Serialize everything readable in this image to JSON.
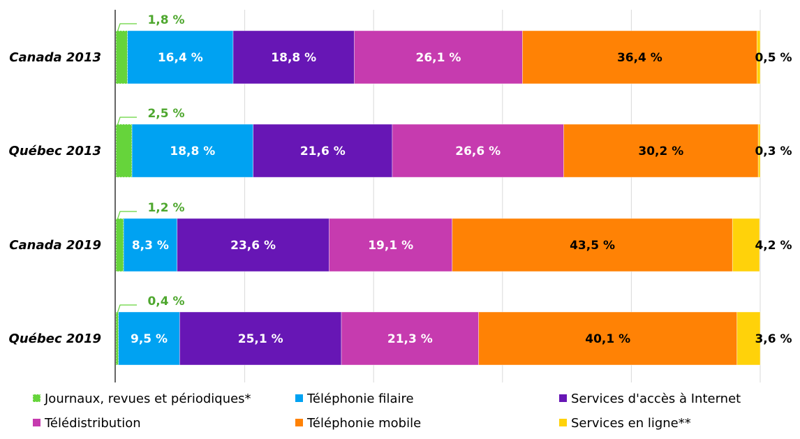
{
  "chart_data": {
    "type": "bar",
    "orientation": "horizontal",
    "stacked": true,
    "categories": [
      "Canada 2013",
      "Québec 2013",
      "Canada 2019",
      "Québec 2019"
    ],
    "series": [
      {
        "name": "Journaux, revues et périodiques*",
        "color": "#66D43B",
        "values": [
          1.8,
          2.5,
          1.2,
          0.4
        ],
        "value_labels": [
          "1,8 %",
          "2,5 %",
          "1,2 %",
          "0,4 %"
        ],
        "label_color": "#4EA72E"
      },
      {
        "name": "Téléphonie filaire",
        "color": "#00A2F2",
        "values": [
          16.4,
          18.8,
          8.3,
          9.5
        ],
        "value_labels": [
          "16,4 %",
          "18,8 %",
          "8,3 %",
          "9,5 %"
        ],
        "label_color": "#FFFFFF"
      },
      {
        "name": "Services d'accès à Internet",
        "color": "#6716B5",
        "values": [
          18.8,
          21.6,
          23.6,
          25.1
        ],
        "value_labels": [
          "18,8 %",
          "21,6 %",
          "23,6 %",
          "25,1 %"
        ],
        "label_color": "#FFFFFF"
      },
      {
        "name": "Télédistribution",
        "color": "#C63BAF",
        "values": [
          26.1,
          26.6,
          19.1,
          21.3
        ],
        "value_labels": [
          "26,1 %",
          "26,6 %",
          "19,1 %",
          "21,3 %"
        ],
        "label_color": "#FFFFFF"
      },
      {
        "name": "Téléphonie mobile",
        "color": "#FF8205",
        "values": [
          36.4,
          30.2,
          43.5,
          40.1
        ],
        "value_labels": [
          "36,4 %",
          "30,2 %",
          "43,5 %",
          "40,1 %"
        ],
        "label_color": "#000000"
      },
      {
        "name": "Services en ligne**",
        "color": "#FFD20A",
        "values": [
          0.5,
          0.3,
          4.2,
          3.6
        ],
        "value_labels": [
          "0,5 %",
          "0,3 %",
          "4,2 %",
          "3,6 %"
        ],
        "label_color": "#000000"
      }
    ],
    "xlim": [
      0,
      100
    ],
    "grid": "vertical",
    "legend": "bottom"
  }
}
